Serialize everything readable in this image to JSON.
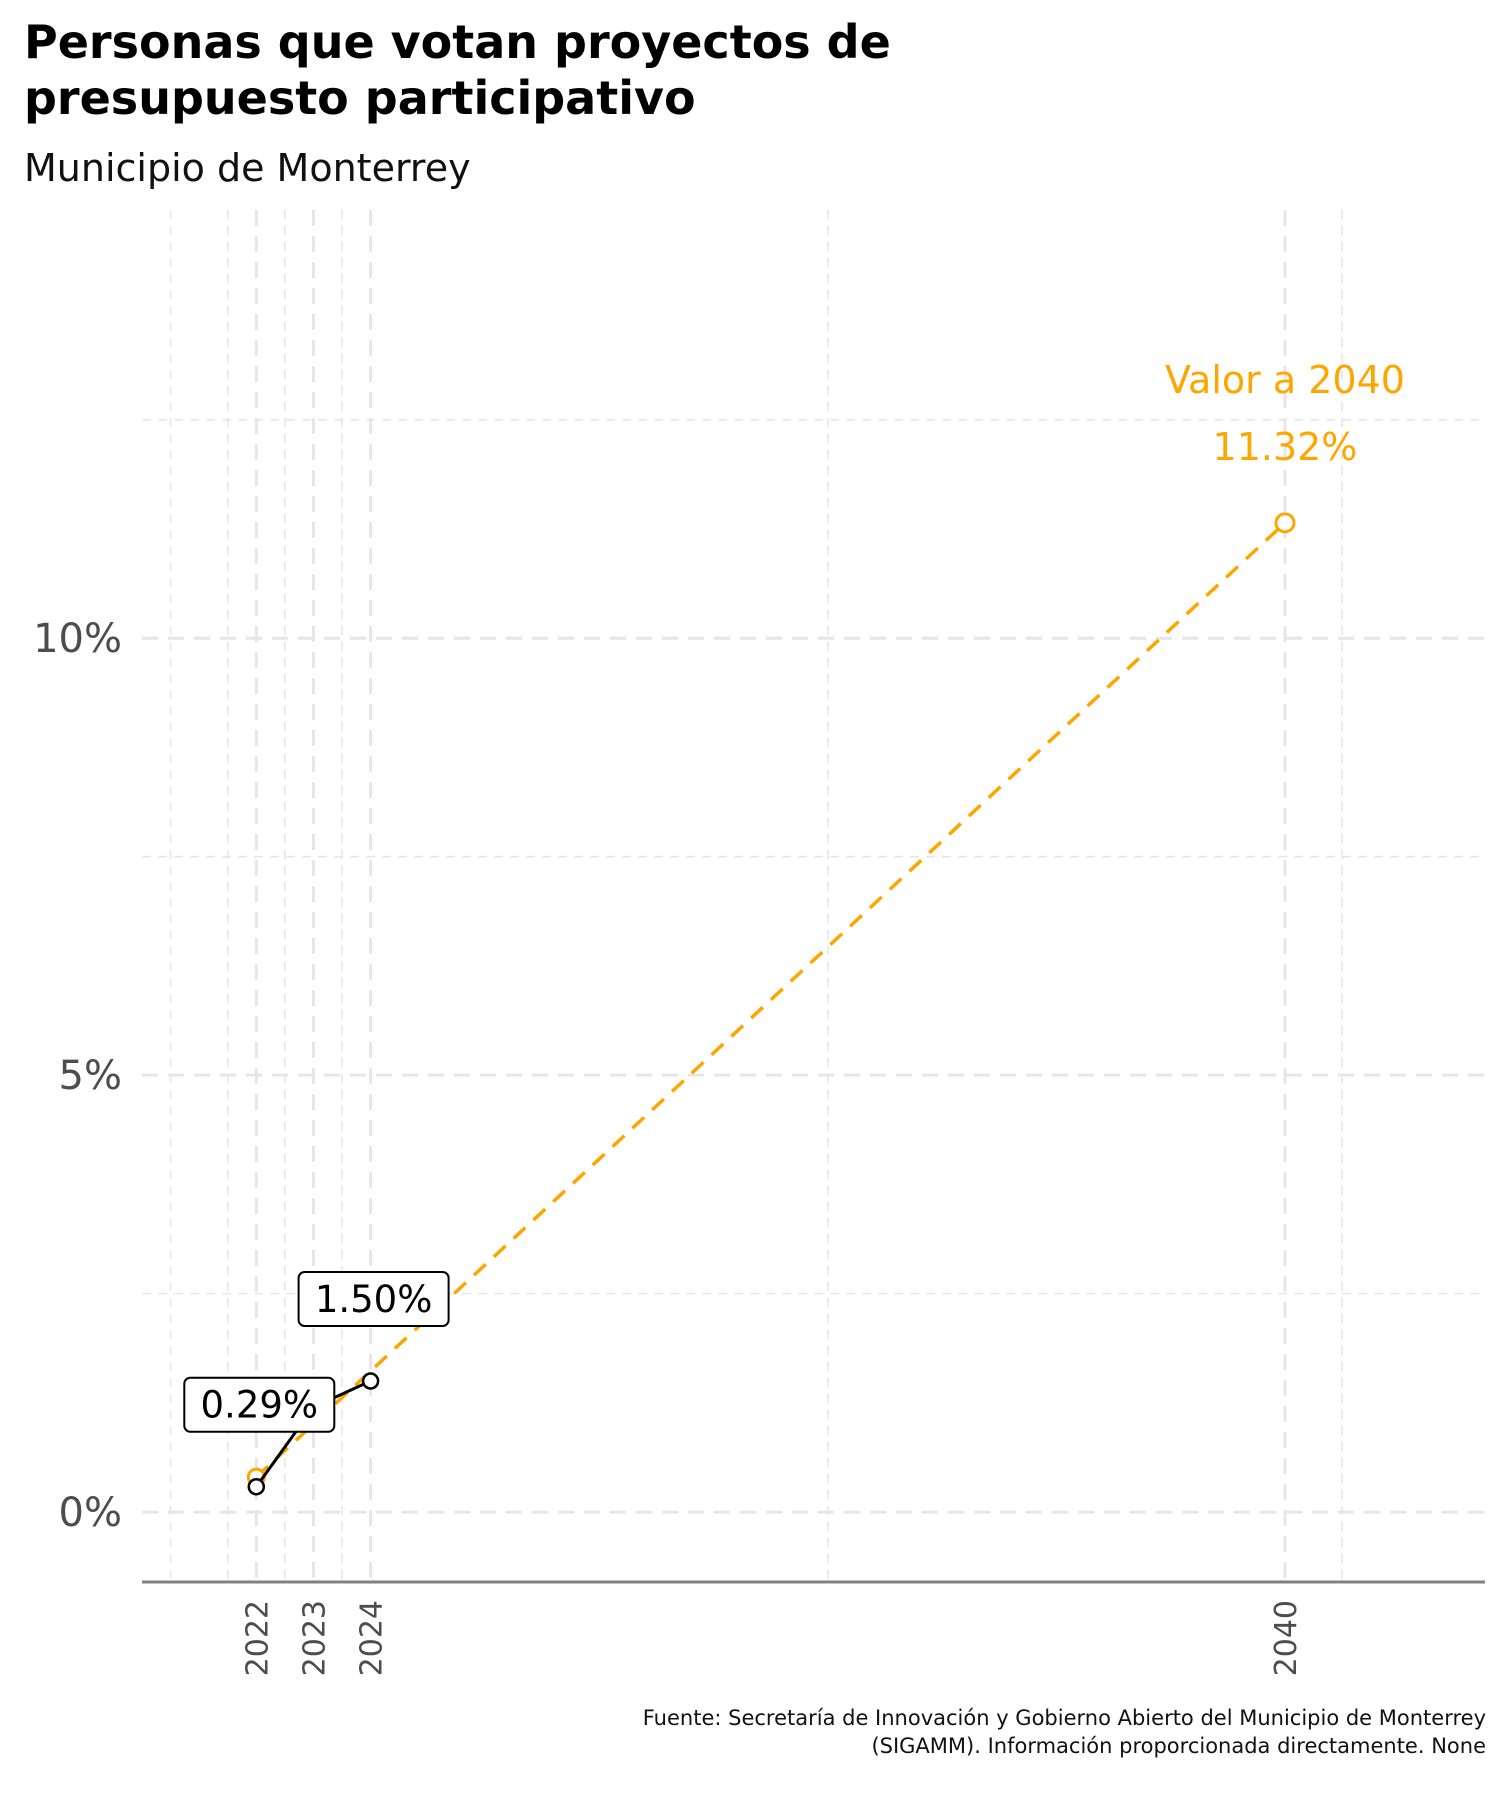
{
  "title": "Personas que votan proyectos de presupuesto participativo",
  "subtitle": "Municipio de Monterrey",
  "caption": "Fuente: Secretaría de Innovación y Gobierno Abierto del Municipio de Monterrey (SIGAMM). Información proporcionada directamente. None",
  "colors": {
    "observed": "#000000",
    "projection": "#FFA500",
    "grid": "#e6e6e6",
    "axis": "#808080"
  },
  "chart_data": {
    "type": "line",
    "x_ticks": [
      "2022",
      "2023",
      "2024",
      "2040"
    ],
    "y_ticks": [
      "0%",
      "5%",
      "10%"
    ],
    "xlim": [
      2020,
      2043.5
    ],
    "ylim": [
      -0.8,
      14.9
    ],
    "grid": true,
    "series": [
      {
        "role": "observed",
        "x": [
          2022,
          2023,
          2024
        ],
        "y": [
          0.29,
          1.2,
          1.5
        ]
      },
      {
        "role": "projection",
        "x": [
          2022,
          2040
        ],
        "y": [
          0.4,
          11.32
        ]
      }
    ],
    "labels": [
      {
        "x": 2022,
        "y": 0.29,
        "text": "0.29%"
      },
      {
        "x": 2024,
        "y": 1.5,
        "text": "1.50%"
      }
    ],
    "target": {
      "x": 2040,
      "y": 11.32,
      "label_line1": "Valor a 2040",
      "label_line2": "11.32%"
    }
  }
}
